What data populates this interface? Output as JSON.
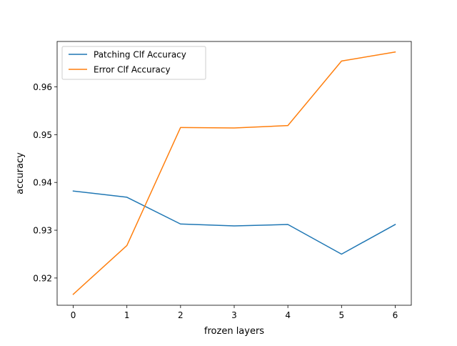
{
  "chart_data": {
    "type": "line",
    "title": "",
    "xlabel": "frozen layers",
    "ylabel": "accuracy",
    "x": [
      0,
      1,
      2,
      3,
      4,
      5,
      6
    ],
    "xticks": [
      "0",
      "1",
      "2",
      "3",
      "4",
      "5",
      "6"
    ],
    "yticks": [
      "0.92",
      "0.93",
      "0.94",
      "0.95",
      "0.96"
    ],
    "ytick_values": [
      0.92,
      0.93,
      0.94,
      0.95,
      0.96
    ],
    "xlim": [
      -0.3,
      6.3
    ],
    "ylim": [
      0.9143,
      0.9695
    ],
    "grid": false,
    "legend_position": "top-left",
    "series": [
      {
        "name": "Patching Clf Accuracy",
        "color": "#1f77b4",
        "values": [
          0.9382,
          0.9369,
          0.9313,
          0.9309,
          0.9312,
          0.925,
          0.9312
        ]
      },
      {
        "name": "Error Clf Accuracy",
        "color": "#ff7f0e",
        "values": [
          0.9166,
          0.9268,
          0.9515,
          0.9514,
          0.9519,
          0.9654,
          0.9673
        ]
      }
    ]
  }
}
